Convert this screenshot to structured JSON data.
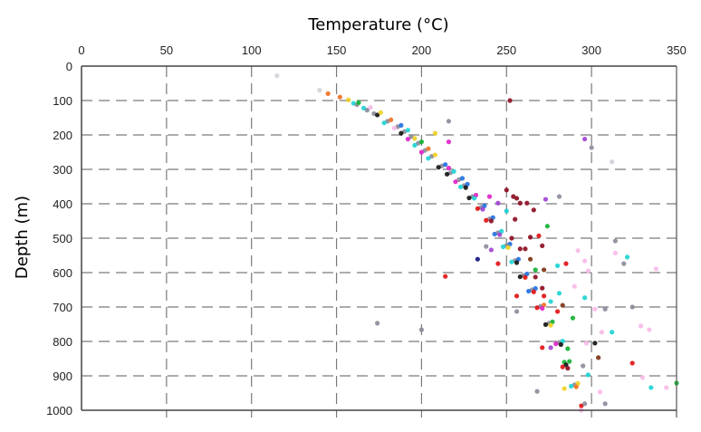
{
  "chart_data": {
    "type": "scatter",
    "title": "Temperature (°C)",
    "xlabel": "Temperature (°C)",
    "ylabel": "Depth (m)",
    "xlim": [
      0,
      350
    ],
    "ylim": [
      0,
      1000
    ],
    "y_inverted": true,
    "x_axis_position": "top",
    "grid": true,
    "x_ticks": [
      0,
      50,
      100,
      150,
      200,
      250,
      300,
      350
    ],
    "y_ticks": [
      0,
      100,
      200,
      300,
      400,
      500,
      600,
      700,
      800,
      900,
      1000
    ],
    "palette": [
      "#8a8a9a",
      "#111111",
      "#1e6fe0",
      "#19d3d3",
      "#e01010",
      "#8b0a1e",
      "#e020c8",
      "#10b030",
      "#f07020",
      "#f0d020",
      "#f8b8e8",
      "#a040d0",
      "#101080",
      "#d0d0d8",
      "#7a3010"
    ],
    "points": [
      [
        115,
        28,
        13
      ],
      [
        140,
        70,
        13
      ],
      [
        145,
        80,
        8
      ],
      [
        152,
        90,
        8
      ],
      [
        157,
        98,
        9
      ],
      [
        160,
        108,
        3
      ],
      [
        162,
        112,
        0
      ],
      [
        163,
        106,
        7
      ],
      [
        166,
        122,
        3
      ],
      [
        168,
        128,
        0
      ],
      [
        170,
        120,
        10
      ],
      [
        172,
        138,
        0
      ],
      [
        174,
        142,
        1
      ],
      [
        176,
        135,
        9
      ],
      [
        180,
        160,
        0
      ],
      [
        182,
        156,
        8
      ],
      [
        178,
        165,
        3
      ],
      [
        186,
        176,
        0
      ],
      [
        188,
        172,
        2
      ],
      [
        184,
        180,
        10
      ],
      [
        190,
        190,
        0
      ],
      [
        192,
        186,
        3
      ],
      [
        188,
        195,
        1
      ],
      [
        194,
        205,
        0
      ],
      [
        196,
        210,
        9
      ],
      [
        192,
        212,
        6
      ],
      [
        198,
        224,
        0
      ],
      [
        200,
        220,
        7
      ],
      [
        196,
        230,
        3
      ],
      [
        202,
        245,
        0
      ],
      [
        204,
        240,
        8
      ],
      [
        200,
        250,
        6
      ],
      [
        206,
        262,
        0
      ],
      [
        208,
        258,
        9
      ],
      [
        204,
        268,
        3
      ],
      [
        212,
        290,
        0
      ],
      [
        214,
        286,
        2
      ],
      [
        210,
        294,
        1
      ],
      [
        216,
        296,
        6
      ],
      [
        217,
        310,
        0
      ],
      [
        219,
        306,
        3
      ],
      [
        215,
        314,
        1
      ],
      [
        222,
        330,
        0
      ],
      [
        224,
        326,
        2
      ],
      [
        220,
        336,
        6
      ],
      [
        225,
        347,
        0
      ],
      [
        227,
        343,
        2
      ],
      [
        223,
        351,
        3
      ],
      [
        226,
        353,
        1
      ],
      [
        230,
        379,
        0
      ],
      [
        232,
        375,
        6
      ],
      [
        228,
        383,
        1
      ],
      [
        231,
        384,
        3
      ],
      [
        235,
        410,
        0
      ],
      [
        237,
        406,
        2
      ],
      [
        233,
        414,
        4
      ],
      [
        236,
        416,
        11
      ],
      [
        240,
        444,
        0
      ],
      [
        242,
        440,
        2
      ],
      [
        238,
        448,
        4
      ],
      [
        241,
        450,
        5
      ],
      [
        245,
        484,
        0
      ],
      [
        247,
        480,
        3
      ],
      [
        243,
        488,
        2
      ],
      [
        246,
        490,
        11
      ],
      [
        250,
        521,
        0
      ],
      [
        252,
        517,
        2
      ],
      [
        248,
        525,
        3
      ],
      [
        251,
        527,
        9
      ],
      [
        255,
        565,
        0
      ],
      [
        257,
        561,
        2
      ],
      [
        253,
        569,
        3
      ],
      [
        256,
        571,
        1
      ],
      [
        260,
        608,
        0
      ],
      [
        262,
        604,
        2
      ],
      [
        258,
        612,
        1
      ],
      [
        261,
        614,
        4
      ],
      [
        265,
        650,
        0
      ],
      [
        267,
        646,
        2
      ],
      [
        263,
        654,
        2
      ],
      [
        266,
        656,
        4
      ],
      [
        270,
        698,
        0
      ],
      [
        272,
        694,
        8
      ],
      [
        268,
        702,
        4
      ],
      [
        271,
        704,
        6
      ],
      [
        275,
        747,
        0
      ],
      [
        277,
        743,
        7
      ],
      [
        273,
        751,
        1
      ],
      [
        276,
        753,
        9
      ],
      [
        281,
        803,
        0
      ],
      [
        283,
        799,
        3
      ],
      [
        279,
        807,
        6
      ],
      [
        282,
        809,
        1
      ],
      [
        284,
        860,
        7
      ],
      [
        285,
        868,
        1
      ],
      [
        283,
        874,
        4
      ],
      [
        286,
        878,
        5
      ],
      [
        290,
        926,
        0
      ],
      [
        292,
        922,
        9
      ],
      [
        288,
        930,
        3
      ],
      [
        291,
        932,
        8
      ],
      [
        294,
        987,
        4
      ],
      [
        296,
        981,
        0
      ],
      [
        294,
        1000,
        10
      ],
      [
        252,
        100,
        5
      ],
      [
        216,
        160,
        0
      ],
      [
        208,
        195,
        9
      ],
      [
        216,
        220,
        6
      ],
      [
        300,
        237,
        0
      ],
      [
        312,
        278,
        13
      ],
      [
        296,
        212,
        11
      ],
      [
        250,
        360,
        5
      ],
      [
        254,
        379,
        5
      ],
      [
        256,
        384,
        5
      ],
      [
        258,
        398,
        5
      ],
      [
        262,
        398,
        5
      ],
      [
        266,
        418,
        5
      ],
      [
        273,
        387,
        11
      ],
      [
        281,
        379,
        0
      ],
      [
        240,
        379,
        6
      ],
      [
        245,
        398,
        11
      ],
      [
        250,
        421,
        3
      ],
      [
        255,
        445,
        5
      ],
      [
        274,
        465,
        7
      ],
      [
        264,
        497,
        5
      ],
      [
        269,
        493,
        4
      ],
      [
        271,
        522,
        5
      ],
      [
        253,
        500,
        5
      ],
      [
        258,
        531,
        5
      ],
      [
        261,
        531,
        5
      ],
      [
        238,
        524,
        0
      ],
      [
        241,
        534,
        11
      ],
      [
        233,
        561,
        12
      ],
      [
        245,
        574,
        4
      ],
      [
        214,
        611,
        4
      ],
      [
        264,
        561,
        14
      ],
      [
        267,
        592,
        7
      ],
      [
        272,
        592,
        14
      ],
      [
        280,
        580,
        3
      ],
      [
        285,
        574,
        4
      ],
      [
        292,
        536,
        10
      ],
      [
        296,
        566,
        10
      ],
      [
        314,
        543,
        10
      ],
      [
        314,
        508,
        0
      ],
      [
        319,
        574,
        0
      ],
      [
        321,
        555,
        3
      ],
      [
        338,
        589,
        10
      ],
      [
        298,
        595,
        10
      ],
      [
        267,
        613,
        5
      ],
      [
        271,
        645,
        5
      ],
      [
        272,
        668,
        4
      ],
      [
        256,
        668,
        4
      ],
      [
        281,
        660,
        3
      ],
      [
        276,
        684,
        3
      ],
      [
        290,
        640,
        10
      ],
      [
        296,
        673,
        3
      ],
      [
        283,
        695,
        14
      ],
      [
        280,
        713,
        4
      ],
      [
        256,
        713,
        0
      ],
      [
        289,
        732,
        7
      ],
      [
        302,
        706,
        10
      ],
      [
        308,
        706,
        0
      ],
      [
        324,
        700,
        0
      ],
      [
        174,
        747,
        0
      ],
      [
        200,
        766,
        0
      ],
      [
        312,
        773,
        3
      ],
      [
        306,
        773,
        10
      ],
      [
        329,
        755,
        10
      ],
      [
        334,
        766,
        10
      ],
      [
        302,
        805,
        1
      ],
      [
        297,
        805,
        10
      ],
      [
        271,
        818,
        4
      ],
      [
        276,
        818,
        11
      ],
      [
        286,
        821,
        7
      ],
      [
        304,
        847,
        14
      ],
      [
        324,
        863,
        4
      ],
      [
        295,
        871,
        0
      ],
      [
        287,
        858,
        7
      ],
      [
        298,
        897,
        3
      ],
      [
        330,
        905,
        10
      ],
      [
        335,
        934,
        3
      ],
      [
        344,
        934,
        10
      ],
      [
        350,
        921,
        7
      ],
      [
        284,
        937,
        9
      ],
      [
        268,
        945,
        0
      ],
      [
        305,
        947,
        10
      ],
      [
        308,
        981,
        0
      ]
    ]
  }
}
